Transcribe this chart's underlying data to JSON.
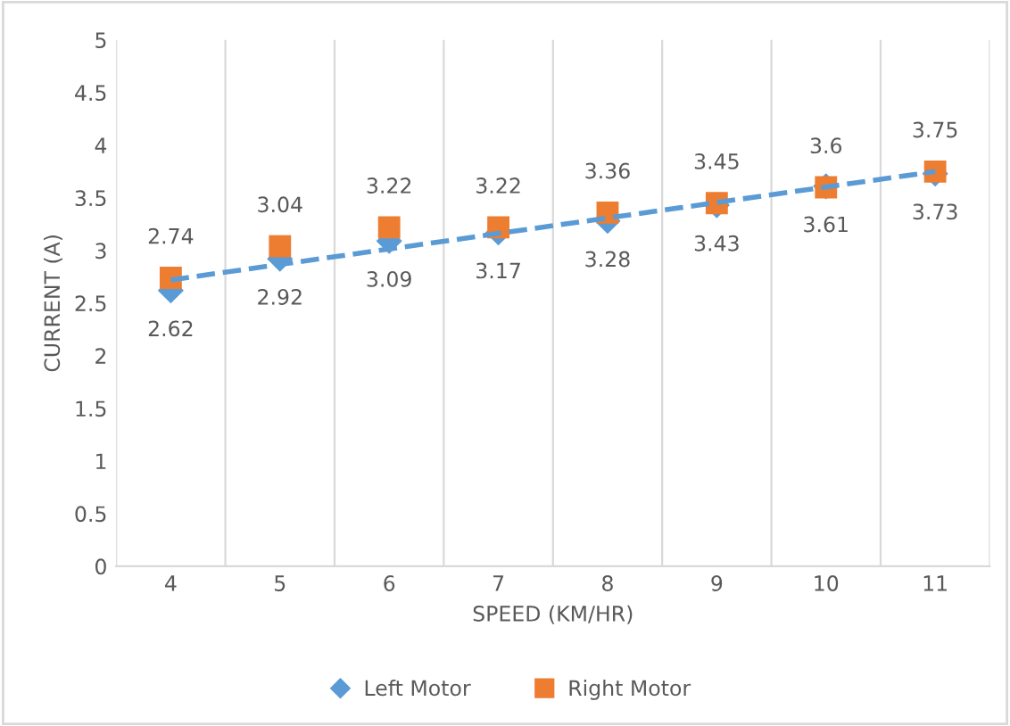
{
  "chart_data": {
    "type": "scatter",
    "xlabel": "SPEED (KM/HR)",
    "ylabel": "CURRENT (A)",
    "categories": [
      "4",
      "5",
      "6",
      "7",
      "8",
      "9",
      "10",
      "11"
    ],
    "series": [
      {
        "name": "Left Motor",
        "color": "#5b9bd5",
        "marker": "diamond",
        "values": [
          2.62,
          2.92,
          3.09,
          3.17,
          3.28,
          3.43,
          3.61,
          3.73
        ],
        "value_labels": [
          "2.62",
          "2.92",
          "3.09",
          "3.17",
          "3.28",
          "3.43",
          "3.61",
          "3.73"
        ]
      },
      {
        "name": "Right Motor",
        "color": "#ed7d31",
        "marker": "square",
        "values": [
          2.74,
          3.04,
          3.22,
          3.22,
          3.36,
          3.45,
          3.6,
          3.75
        ],
        "value_labels": [
          "2.74",
          "3.04",
          "3.22",
          "3.22",
          "3.36",
          "3.45",
          "3.6",
          "3.75"
        ]
      },
      {
        "type": "line",
        "color": "#5b9bd5",
        "line_style": "dashed",
        "x": [
          "4",
          "11"
        ],
        "values": [
          2.72,
          3.75
        ]
      }
    ],
    "ylim": [
      0,
      5
    ],
    "yticks": [
      0,
      0.5,
      1,
      1.5,
      2,
      2.5,
      3,
      3.5,
      4,
      4.5,
      5
    ],
    "grid": "x",
    "legend": "bottom"
  }
}
